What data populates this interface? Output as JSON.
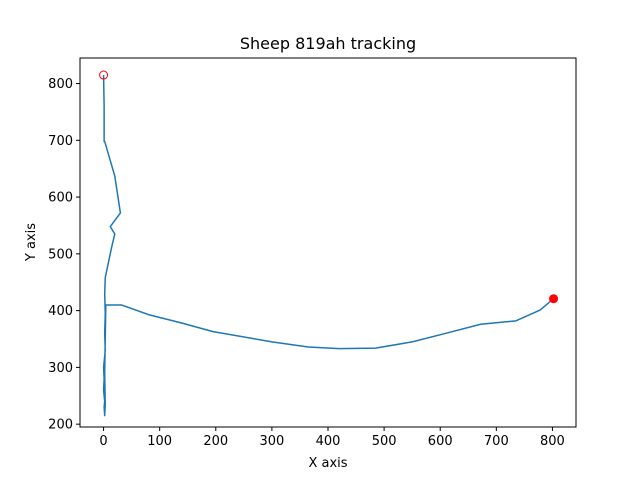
{
  "chart_data": {
    "type": "line",
    "title": "Sheep 819ah tracking",
    "xlabel": "X axis",
    "ylabel": "Y axis",
    "xlim": [
      -42,
      842
    ],
    "ylim": [
      195,
      845
    ],
    "xticks": [
      0,
      100,
      200,
      300,
      400,
      500,
      600,
      700,
      800
    ],
    "yticks": [
      200,
      300,
      400,
      500,
      600,
      700,
      800
    ],
    "grid": false,
    "series": [
      {
        "color": "#1f77b4",
        "x": [
          0,
          1,
          1,
          1,
          2,
          20,
          30,
          12,
          20,
          14,
          3,
          2,
          3,
          2,
          3,
          0,
          1,
          0,
          2,
          1,
          2,
          3,
          2,
          4,
          32,
          80,
          140,
          195,
          300,
          365,
          420,
          485,
          550,
          610,
          672,
          735,
          778,
          802
        ],
        "y": [
          815,
          760,
          700,
          698,
          698,
          637,
          572,
          548,
          535,
          510,
          458,
          430,
          395,
          360,
          330,
          300,
          280,
          260,
          240,
          230,
          215,
          235,
          290,
          410,
          410,
          393,
          378,
          363,
          345,
          336,
          333,
          334,
          345,
          360,
          376,
          382,
          401,
          421
        ]
      }
    ],
    "markers": [
      {
        "role": "start",
        "x": 0,
        "y": 815,
        "color": "#ff0000",
        "filled": false
      },
      {
        "role": "end",
        "x": 802,
        "y": 421,
        "color": "#ff0000",
        "filled": true
      }
    ]
  }
}
